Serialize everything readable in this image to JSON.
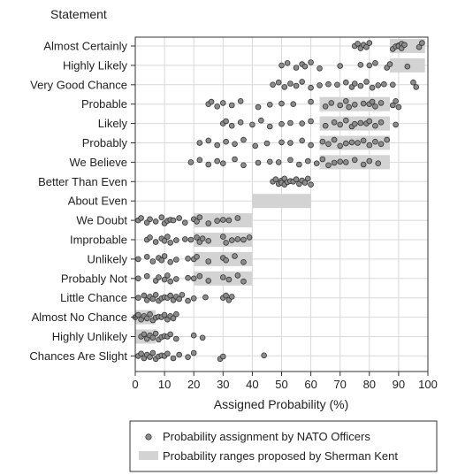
{
  "chart_data": {
    "type": "scatter",
    "title": "",
    "y_heading": "Statement",
    "xlabel": "Assigned Probability (%)",
    "xlim": [
      0,
      100
    ],
    "x_ticks": [
      0,
      10,
      20,
      30,
      40,
      50,
      60,
      70,
      80,
      90,
      100
    ],
    "grid": true,
    "legend_position": "bottom",
    "colors": {
      "point_fill": "#8c8c8c",
      "point_stroke": "#333333",
      "range_fill": "#d3d3d3",
      "grid": "#d9d9d9"
    },
    "legend": [
      {
        "symbol": "point",
        "label": "Probability assignment by NATO Officers"
      },
      {
        "symbol": "range",
        "label": "Probability ranges proposed by Sherman Kent"
      }
    ],
    "categories": [
      "Almost Certainly",
      "Highly Likely",
      "Very Good Chance",
      "Probable",
      "Likely",
      "Probably",
      "We Believe",
      "Better Than Even",
      "About Even",
      "We Doubt",
      "Improbable",
      "Unlikely",
      "Probably Not",
      "Little Chance",
      "Almost No Chance",
      "Highly Unlikely",
      "Chances Are Slight"
    ],
    "kent_ranges": [
      [
        87,
        99
      ],
      [
        87,
        99
      ],
      null,
      [
        63,
        87
      ],
      [
        63,
        87
      ],
      [
        63,
        87
      ],
      [
        63,
        87
      ],
      null,
      [
        40,
        60
      ],
      [
        20,
        40
      ],
      [
        20,
        40
      ],
      [
        20,
        40
      ],
      [
        20,
        40
      ],
      null,
      [
        0,
        7
      ],
      [
        0,
        7
      ],
      null
    ],
    "points": [
      [
        75,
        76,
        77,
        78,
        79,
        80,
        88,
        89,
        90,
        90,
        91,
        91,
        92,
        97,
        98
      ],
      [
        50,
        52,
        55,
        57,
        58,
        60,
        63,
        70,
        77,
        80,
        82,
        86,
        87,
        93
      ],
      [
        47,
        49,
        51,
        53,
        55,
        57,
        60,
        63,
        66,
        69,
        72,
        74,
        75,
        77,
        79,
        81,
        83,
        85,
        88,
        95,
        96
      ],
      [
        25,
        26,
        28,
        30,
        33,
        36,
        42,
        46,
        50,
        54,
        60,
        65,
        67,
        70,
        72,
        73,
        75,
        78,
        80,
        81,
        82,
        84,
        88,
        89,
        90
      ],
      [
        30,
        31,
        33,
        36,
        40,
        43,
        46,
        50,
        53,
        57,
        60,
        65,
        68,
        70,
        72,
        74,
        75,
        77,
        79,
        80,
        82,
        84,
        89
      ],
      [
        22,
        25,
        28,
        31,
        34,
        37,
        41,
        45,
        50,
        53,
        57,
        60,
        64,
        66,
        68,
        70,
        72,
        74,
        76,
        78,
        80,
        82,
        84,
        86
      ],
      [
        19,
        22,
        25,
        28,
        30,
        34,
        37,
        42,
        46,
        49,
        53,
        56,
        59,
        62,
        64,
        66,
        68,
        70,
        72,
        75,
        78,
        80,
        83
      ],
      [
        47,
        48,
        49,
        50,
        50,
        51,
        51,
        52,
        53,
        54,
        55,
        56,
        57,
        58,
        59,
        60
      ],
      [],
      [
        1,
        2,
        4,
        5,
        7,
        9,
        10,
        11,
        12,
        13,
        15,
        17,
        20,
        21,
        22,
        25,
        28,
        30,
        32,
        35
      ],
      [
        4,
        5,
        7,
        9,
        10,
        11,
        12,
        14,
        17,
        19,
        21,
        22,
        23,
        25,
        30,
        31,
        33,
        35,
        37,
        39
      ],
      [
        1,
        4,
        6,
        8,
        9,
        10,
        12,
        14,
        18,
        20,
        21,
        25,
        30,
        31,
        34,
        37
      ],
      [
        1,
        4,
        7,
        8,
        10,
        11,
        12,
        14,
        18,
        20,
        22,
        25,
        30,
        32,
        35,
        37
      ],
      [
        1,
        3,
        4,
        5,
        6,
        7,
        8,
        9,
        10,
        11,
        12,
        13,
        14,
        15,
        16,
        18,
        20,
        24,
        30,
        31,
        32,
        33
      ],
      [
        0,
        1,
        2,
        3,
        4,
        5,
        6,
        7,
        8,
        9,
        10,
        11,
        12,
        13,
        14
      ],
      [
        2,
        3,
        4,
        5,
        6,
        7,
        8,
        9,
        10,
        11,
        12,
        14,
        20,
        23
      ],
      [
        1,
        2,
        3,
        4,
        5,
        6,
        7,
        8,
        9,
        10,
        11,
        13,
        15,
        18,
        20,
        29,
        30,
        44
      ]
    ]
  }
}
